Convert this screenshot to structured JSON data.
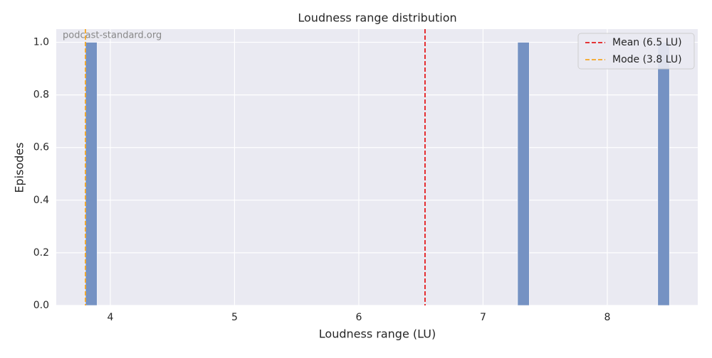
{
  "chart_data": {
    "type": "histogram",
    "title": "Loudness range distribution",
    "x_label": "Loudness range (LU)",
    "y_label": "Episodes",
    "bins": [
      3.8,
      3.894,
      3.988,
      4.082,
      4.176,
      4.27,
      4.364,
      4.458,
      4.552,
      4.646,
      4.74,
      4.834,
      4.928,
      5.022,
      5.116,
      5.21,
      5.304,
      5.398,
      5.492,
      5.586,
      5.68,
      5.774,
      5.868,
      5.962,
      6.056,
      6.15,
      6.244,
      6.338,
      6.432,
      6.526,
      6.62,
      6.714,
      6.808,
      6.902,
      6.996,
      7.09,
      7.184,
      7.278,
      7.372,
      7.466,
      7.56,
      7.654,
      7.748,
      7.842,
      7.936,
      8.03,
      8.124,
      8.218,
      8.312,
      8.406,
      8.5
    ],
    "counts": [
      1,
      0,
      0,
      0,
      0,
      0,
      0,
      0,
      0,
      0,
      0,
      0,
      0,
      0,
      0,
      0,
      0,
      0,
      0,
      0,
      0,
      0,
      0,
      0,
      0,
      0,
      0,
      0,
      0,
      0,
      0,
      0,
      0,
      0,
      0,
      0,
      0,
      1,
      0,
      0,
      0,
      0,
      0,
      0,
      0,
      0,
      0,
      0,
      0,
      1
    ],
    "color": "#7592c3",
    "lines": [
      {
        "name": "Mean (6.5 LU)",
        "value": 6.533,
        "color": "#e41a1c"
      },
      {
        "name": "Mode (3.8 LU)",
        "value": 3.8,
        "color": "#f5a623"
      }
    ],
    "annotation": "podcast-standard.org",
    "xlim": [
      3.565,
      8.728
    ],
    "xticks": [
      4,
      5,
      6,
      7,
      8
    ],
    "ylim": [
      0,
      1.05
    ],
    "yticks": [
      {
        "value": 0,
        "label": "0.0"
      },
      0.2,
      0.4,
      0.6,
      0.8,
      {
        "value": 1,
        "label": "1.0"
      }
    ],
    "grid": true,
    "legend": "upper right"
  }
}
